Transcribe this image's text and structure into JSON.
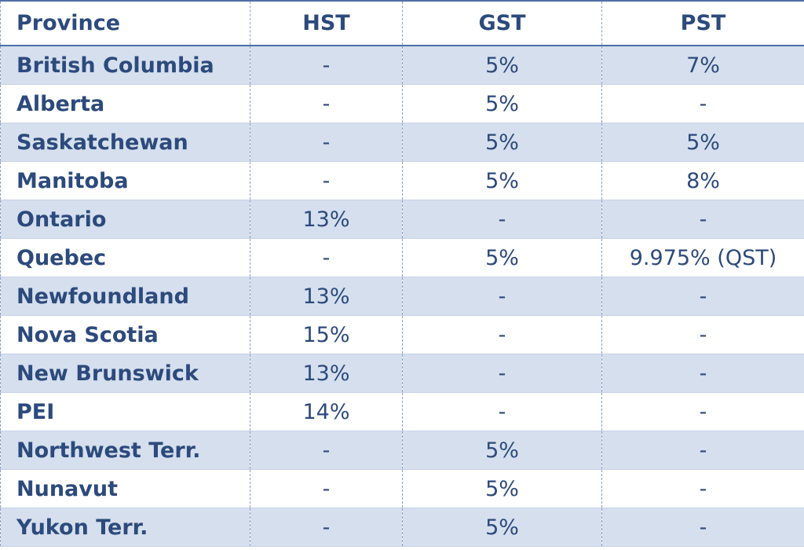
{
  "table": {
    "header": [
      "Province",
      "HST",
      "GST",
      "PST"
    ],
    "rows": [
      [
        "British Columbia",
        "-",
        "5%",
        "7%"
      ],
      [
        "Alberta",
        "-",
        "5%",
        "-"
      ],
      [
        "Saskatchewan",
        "-",
        "5%",
        "5%"
      ],
      [
        "Manitoba",
        "-",
        "5%",
        "8%"
      ],
      [
        "Ontario",
        "13%",
        "-",
        "-"
      ],
      [
        "Quebec",
        "-",
        "5%",
        "9.975% (QST)"
      ],
      [
        "Newfoundland",
        "13%",
        "-",
        "-"
      ],
      [
        "Nova Scotia",
        "15%",
        "-",
        "-"
      ],
      [
        "New Brunswick",
        "13%",
        "-",
        "-"
      ],
      [
        "PEI",
        "14%",
        "-",
        "-"
      ],
      [
        "Northwest Terr.",
        "-",
        "5%",
        "-"
      ],
      [
        "Nunavut",
        "-",
        "5%",
        "-"
      ],
      [
        "Yukon Terr.",
        "-",
        "5%",
        "-"
      ]
    ]
  }
}
